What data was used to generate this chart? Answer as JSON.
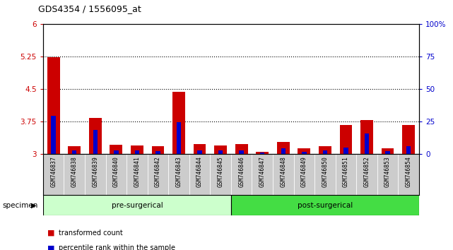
{
  "title": "GDS4354 / 1556095_at",
  "categories": [
    "GSM746837",
    "GSM746838",
    "GSM746839",
    "GSM746840",
    "GSM746841",
    "GSM746842",
    "GSM746843",
    "GSM746844",
    "GSM746845",
    "GSM746846",
    "GSM746847",
    "GSM746848",
    "GSM746849",
    "GSM746850",
    "GSM746851",
    "GSM746852",
    "GSM746853",
    "GSM746854"
  ],
  "red_values": [
    5.22,
    3.17,
    3.82,
    3.2,
    3.19,
    3.17,
    4.43,
    3.22,
    3.19,
    3.22,
    3.05,
    3.28,
    3.12,
    3.17,
    3.67,
    3.78,
    3.12,
    3.67
  ],
  "blue_values": [
    3.88,
    3.08,
    3.55,
    3.08,
    3.07,
    3.06,
    3.73,
    3.08,
    3.07,
    3.08,
    3.03,
    3.12,
    3.05,
    3.07,
    3.15,
    3.47,
    3.06,
    3.18
  ],
  "ylim_left": [
    3.0,
    6.0
  ],
  "ylim_right": [
    0,
    100
  ],
  "yticks_left": [
    3.0,
    3.75,
    4.5,
    5.25,
    6.0
  ],
  "ytick_labels_left": [
    "3",
    "3.75",
    "4.5",
    "5.25",
    "6"
  ],
  "yticks_right": [
    0,
    25,
    50,
    75,
    100
  ],
  "ytick_labels_right": [
    "0",
    "25",
    "50",
    "75",
    "100%"
  ],
  "grid_lines": [
    3.75,
    4.5,
    5.25
  ],
  "pre_surgical_count": 9,
  "post_surgical_count": 9,
  "pre_surgical_label": "pre-surgerical",
  "post_surgical_label": "post-surgerical",
  "specimen_label": "specimen",
  "legend_red_label": "transformed count",
  "legend_blue_label": "percentile rank within the sample",
  "bar_color_red": "#CC0000",
  "bar_color_blue": "#0000CC",
  "pre_surgical_color": "#CCFFCC",
  "post_surgical_color": "#44DD44",
  "tick_color_left": "#CC0000",
  "tick_color_right": "#0000CC",
  "xticklabel_bg": "#CCCCCC",
  "plot_bg_color": "#FFFFFF"
}
